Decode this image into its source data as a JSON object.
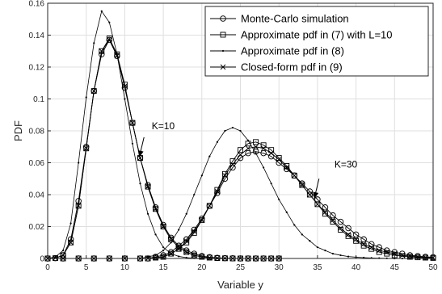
{
  "chart_data": {
    "type": "line",
    "xlabel": "Variable y",
    "ylabel": "PDF",
    "xlim": [
      0,
      50
    ],
    "ylim": [
      0,
      0.16
    ],
    "xticks": [
      0,
      5,
      10,
      15,
      20,
      25,
      30,
      35,
      40,
      45,
      50
    ],
    "yticks": [
      0,
      0.02,
      0.04,
      0.06,
      0.08,
      0.1,
      0.12,
      0.14,
      0.16
    ],
    "grid": true,
    "legend_position": "top-right",
    "annotations": [
      {
        "text": "K=10",
        "x": 13.5,
        "y": 0.081,
        "arrow_to": [
          12.5,
          0.077
        ]
      },
      {
        "text": "K=30",
        "x": 37.2,
        "y": 0.057,
        "arrow_to": [
          35.2,
          0.051
        ]
      }
    ],
    "series": [
      {
        "name": "Monte-Carlo simulation",
        "marker": "circle",
        "groups": [
          {
            "x": [
              0,
              1,
              2,
              3,
              4,
              5,
              6,
              7,
              8,
              9,
              10,
              11,
              12,
              13,
              14,
              15,
              16,
              17,
              18,
              19,
              20,
              21,
              22,
              23,
              24,
              25,
              26,
              27,
              28,
              29,
              30
            ],
            "y": [
              0,
              0.0002,
              0.002,
              0.012,
              0.036,
              0.07,
              0.105,
              0.128,
              0.137,
              0.127,
              0.107,
              0.085,
              0.063,
              0.046,
              0.032,
              0.021,
              0.013,
              0.008,
              0.005,
              0.003,
              0.0015,
              0.0008,
              0.0004,
              0.0002,
              0.0001,
              0,
              0,
              0,
              0,
              0,
              0
            ]
          },
          {
            "x": [
              0,
              2,
              4,
              6,
              8,
              10,
              12,
              13,
              14,
              15,
              16,
              17,
              18,
              19,
              20,
              21,
              22,
              23,
              24,
              25,
              26,
              27,
              28,
              29,
              30,
              31,
              32,
              33,
              34,
              35,
              36,
              37,
              38,
              39,
              40,
              41,
              42,
              43,
              44,
              45,
              46,
              47,
              48,
              49,
              50
            ],
            "y": [
              0,
              0,
              0,
              0,
              0,
              0,
              0,
              0,
              0.001,
              0.002,
              0.004,
              0.008,
              0.012,
              0.018,
              0.025,
              0.033,
              0.041,
              0.05,
              0.057,
              0.063,
              0.066,
              0.067,
              0.066,
              0.064,
              0.06,
              0.056,
              0.052,
              0.047,
              0.042,
              0.037,
              0.032,
              0.027,
              0.023,
              0.019,
              0.015,
              0.012,
              0.009,
              0.007,
              0.005,
              0.004,
              0.003,
              0.002,
              0.0015,
              0.001,
              0.0008
            ]
          }
        ]
      },
      {
        "name": "Approximate pdf in (7) with L=10",
        "marker": "square",
        "groups": [
          {
            "x": [
              0,
              1,
              2,
              3,
              4,
              5,
              6,
              7,
              8,
              9,
              10,
              11,
              12,
              13,
              14,
              15,
              16,
              17,
              18,
              19,
              20,
              21,
              22,
              23,
              24,
              25,
              26,
              27,
              28,
              29,
              30
            ],
            "y": [
              0,
              0.0002,
              0.002,
              0.01,
              0.033,
              0.069,
              0.105,
              0.13,
              0.138,
              0.128,
              0.109,
              0.085,
              0.063,
              0.045,
              0.031,
              0.02,
              0.012,
              0.007,
              0.004,
              0.002,
              0.001,
              0.0005,
              0.0002,
              0.0001,
              0,
              0,
              0,
              0,
              0,
              0,
              0
            ]
          },
          {
            "x": [
              0,
              2,
              4,
              6,
              8,
              10,
              12,
              13,
              14,
              15,
              16,
              17,
              18,
              19,
              20,
              21,
              22,
              23,
              24,
              25,
              26,
              27,
              28,
              29,
              30,
              31,
              32,
              33,
              34,
              35,
              36,
              37,
              38,
              39,
              40,
              41,
              42,
              43,
              44,
              45,
              46,
              47,
              48,
              49,
              50
            ],
            "y": [
              0,
              0,
              0,
              0,
              0,
              0,
              0,
              0,
              0.0005,
              0.001,
              0.003,
              0.006,
              0.01,
              0.016,
              0.024,
              0.033,
              0.043,
              0.053,
              0.061,
              0.068,
              0.072,
              0.073,
              0.071,
              0.068,
              0.063,
              0.058,
              0.052,
              0.046,
              0.04,
              0.034,
              0.028,
              0.023,
              0.018,
              0.014,
              0.011,
              0.008,
              0.006,
              0.004,
              0.003,
              0.002,
              0.0015,
              0.001,
              0.0007,
              0.0005,
              0.0003
            ]
          }
        ]
      },
      {
        "name": "Approximate pdf in (8)",
        "marker": "dot",
        "groups": [
          {
            "x": [
              0,
              1,
              2,
              3,
              4,
              5,
              6,
              7,
              8,
              9,
              10,
              11,
              12,
              13,
              14,
              15,
              16,
              17,
              18,
              19,
              20,
              21,
              22,
              23,
              24,
              25,
              26,
              27,
              28,
              29,
              30
            ],
            "y": [
              0,
              0.001,
              0.005,
              0.022,
              0.06,
              0.101,
              0.135,
              0.155,
              0.148,
              0.128,
              0.1,
              0.072,
              0.047,
              0.028,
              0.015,
              0.007,
              0.003,
              0.0013,
              0.0005,
              0.0002,
              0.0001,
              0,
              0,
              0,
              0,
              0,
              0,
              0,
              0,
              0,
              0
            ]
          },
          {
            "x": [
              0,
              2,
              4,
              6,
              8,
              10,
              12,
              13,
              14,
              15,
              16,
              17,
              18,
              19,
              20,
              21,
              22,
              23,
              24,
              25,
              26,
              27,
              28,
              29,
              30,
              31,
              32,
              33,
              34,
              35,
              36,
              37,
              38,
              39,
              40,
              41,
              42,
              43,
              44,
              45,
              46,
              47,
              48,
              49,
              50
            ],
            "y": [
              0,
              0,
              0,
              0,
              0,
              0,
              0,
              0.001,
              0.002,
              0.005,
              0.01,
              0.018,
              0.028,
              0.04,
              0.052,
              0.064,
              0.073,
              0.08,
              0.082,
              0.08,
              0.074,
              0.066,
              0.057,
              0.047,
              0.037,
              0.029,
              0.021,
              0.015,
              0.011,
              0.007,
              0.005,
              0.003,
              0.002,
              0.0012,
              0.0008,
              0.0005,
              0.0003,
              0.0002,
              0.0001,
              0,
              0,
              0,
              0,
              0,
              0
            ]
          }
        ]
      },
      {
        "name": "Closed-form pdf in (9)",
        "marker": "cross",
        "groups": [
          {
            "x": [
              0,
              1,
              2,
              3,
              4,
              5,
              6,
              7,
              8,
              9,
              10,
              11,
              12,
              13,
              14,
              15,
              16,
              17,
              18,
              19,
              20,
              21,
              22,
              23,
              24,
              25,
              26,
              27,
              28,
              29,
              30
            ],
            "y": [
              0,
              0.0002,
              0.002,
              0.01,
              0.033,
              0.069,
              0.105,
              0.13,
              0.137,
              0.127,
              0.108,
              0.085,
              0.063,
              0.045,
              0.031,
              0.02,
              0.012,
              0.007,
              0.004,
              0.002,
              0.001,
              0.0005,
              0.0002,
              0.0001,
              0,
              0,
              0,
              0,
              0,
              0,
              0
            ]
          },
          {
            "x": [
              0,
              2,
              4,
              6,
              8,
              10,
              12,
              13,
              14,
              15,
              16,
              17,
              18,
              19,
              20,
              21,
              22,
              23,
              24,
              25,
              26,
              27,
              28,
              29,
              30,
              31,
              32,
              33,
              34,
              35,
              36,
              37,
              38,
              39,
              40,
              41,
              42,
              43,
              44,
              45,
              46,
              47,
              48,
              49,
              50
            ],
            "y": [
              0,
              0,
              0,
              0,
              0,
              0,
              0,
              0,
              0.0005,
              0.001,
              0.003,
              0.006,
              0.011,
              0.017,
              0.024,
              0.033,
              0.042,
              0.052,
              0.059,
              0.065,
              0.069,
              0.07,
              0.069,
              0.066,
              0.062,
              0.057,
              0.052,
              0.046,
              0.04,
              0.034,
              0.029,
              0.024,
              0.019,
              0.015,
              0.012,
              0.009,
              0.007,
              0.005,
              0.004,
              0.003,
              0.002,
              0.0015,
              0.001,
              0.0007,
              0.0005
            ]
          }
        ]
      }
    ]
  }
}
